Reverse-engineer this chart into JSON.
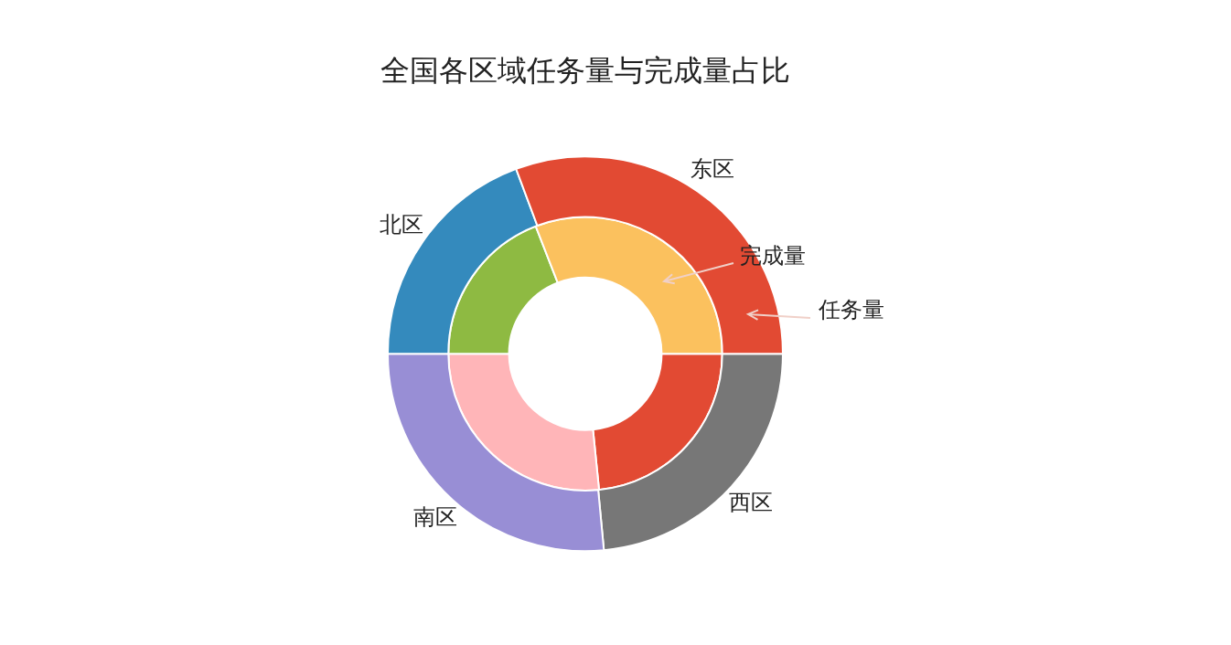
{
  "chart_data": {
    "type": "donut",
    "title": "全国各区域任务量与完成量占比",
    "categories": [
      "东区",
      "北区",
      "南区",
      "西区"
    ],
    "series": [
      {
        "name": "任务量",
        "colors": [
          "#e24a33",
          "#348abd",
          "#988ed5",
          "#777777"
        ],
        "values": [
          30.7,
          19.3,
          26.5,
          23.5
        ]
      },
      {
        "name": "完成量",
        "colors": [
          "#fbc15e",
          "#8eba42",
          "#ffb5b8",
          "#e24a33"
        ],
        "values": [
          30.9,
          19.1,
          26.6,
          23.4
        ]
      }
    ],
    "legend": false
  }
}
